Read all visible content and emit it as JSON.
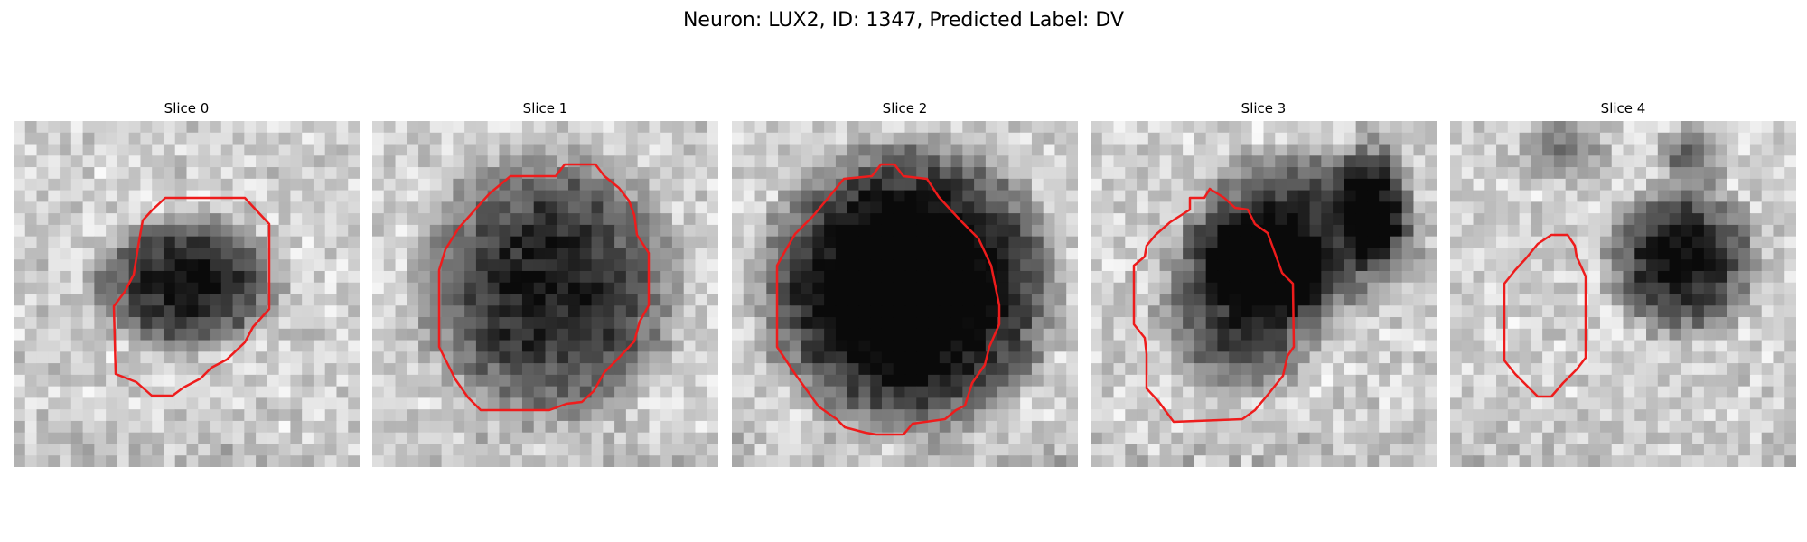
{
  "figure": {
    "title": "Neuron: LUX2, ID: 1347, Predicted Label: DV"
  },
  "panels": [
    {
      "title": "Slice 0"
    },
    {
      "title": "Slice 1"
    },
    {
      "title": "Slice 2"
    },
    {
      "title": "Slice 3"
    },
    {
      "title": "Slice 4"
    }
  ],
  "colors": {
    "contour": "#ee1c1c",
    "background": "#ffffff"
  }
}
